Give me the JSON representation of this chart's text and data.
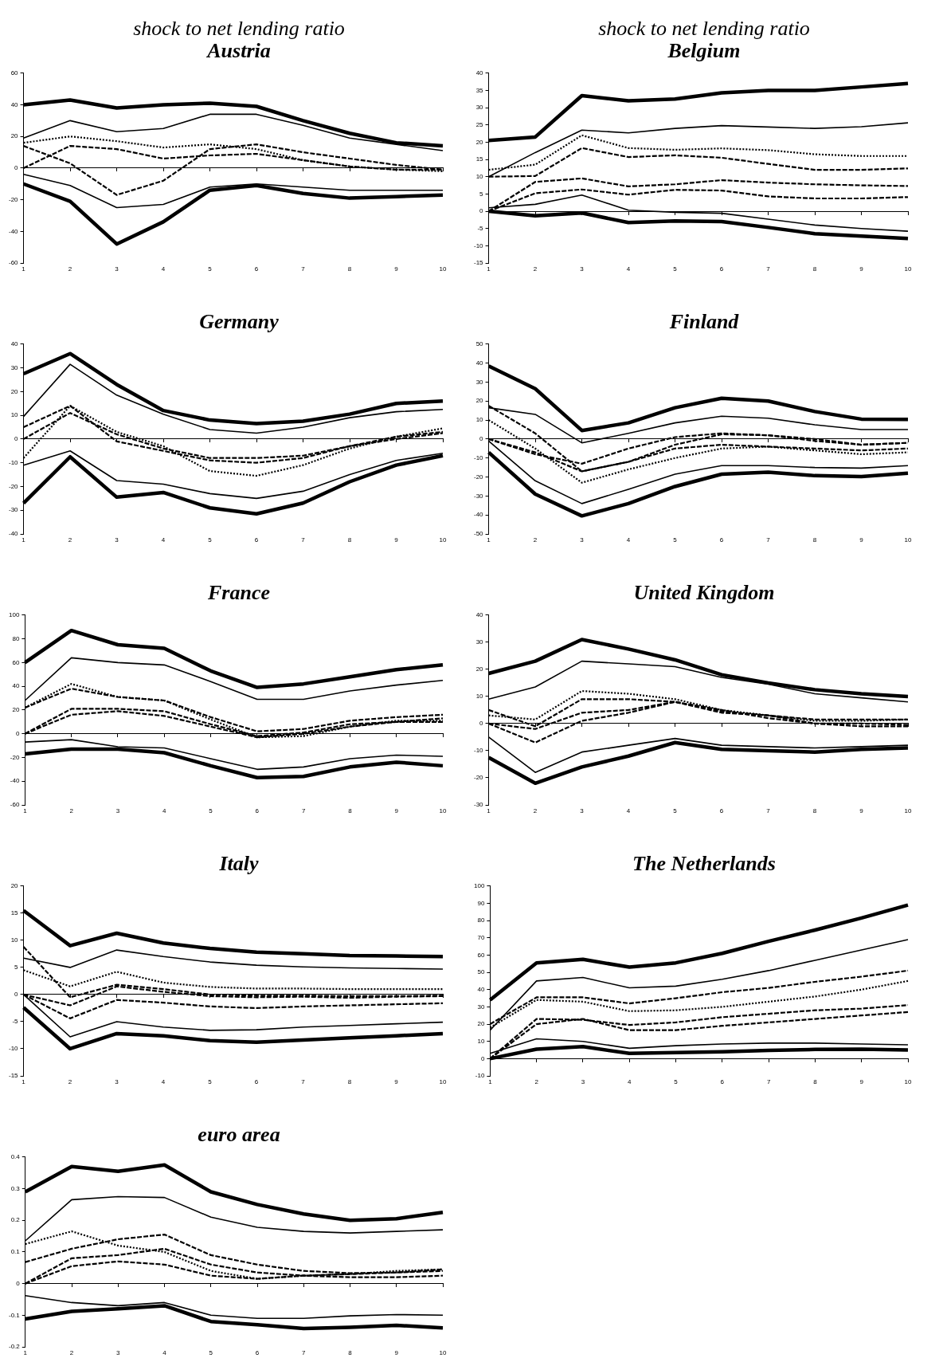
{
  "chart_data": [
    {
      "type": "line",
      "subtitle": "shock to net lending ratio",
      "title": "Austria",
      "categories": [
        "1",
        "2",
        "3",
        "4",
        "5",
        "6",
        "7",
        "8",
        "9",
        "10"
      ],
      "ylim": [
        -60,
        60
      ],
      "yticks": [
        -60,
        -40,
        -20,
        0,
        20,
        40,
        60
      ],
      "legend": false,
      "series": [
        {
          "color": "#000000",
          "line_style": "solid",
          "values": [
            40,
            43,
            38,
            40,
            41,
            39,
            30,
            22,
            16,
            14
          ]
        },
        {
          "color": "#000000",
          "line_style": "solid",
          "values": [
            -10,
            -21,
            -48,
            -34,
            -14,
            -11,
            -16,
            -19,
            -18,
            -17
          ]
        },
        {
          "color": "#000000",
          "line_style": "solid",
          "values": [
            19,
            30,
            23,
            25,
            34,
            34,
            27,
            19,
            15,
            11
          ]
        },
        {
          "color": "#000000",
          "line_style": "solid",
          "values": [
            -4,
            -11,
            -25,
            -23,
            -12,
            -10,
            -12,
            -14,
            -14,
            -14
          ]
        },
        {
          "color": "#000000",
          "line_style": "dotted",
          "values": [
            16,
            20,
            17,
            13,
            15,
            12,
            5,
            1,
            -1,
            -2
          ]
        },
        {
          "color": "#000000",
          "line_style": "dashed",
          "values": [
            14,
            3,
            -17,
            -8,
            12,
            15,
            10,
            6,
            2,
            -1
          ]
        },
        {
          "color": "#000000",
          "line_style": "dashed",
          "values": [
            0,
            14,
            12,
            6,
            8,
            9,
            5,
            1,
            -1,
            -1
          ]
        }
      ]
    },
    {
      "type": "line",
      "subtitle": "shock to net lending ratio",
      "title": "Belgium",
      "categories": [
        "1",
        "2",
        "3",
        "4",
        "5",
        "6",
        "7",
        "8",
        "9",
        "10"
      ],
      "ylim": [
        -15,
        40
      ],
      "yticks": [
        -15,
        -10,
        -5,
        0,
        5,
        10,
        15,
        20,
        25,
        30,
        35,
        40
      ],
      "legend": false,
      "series": [
        {
          "color": "#000000",
          "line_style": "solid",
          "values": [
            20.5,
            21.5,
            33.5,
            32,
            32.5,
            34.3,
            35,
            35,
            36,
            37
          ]
        },
        {
          "color": "#000000",
          "line_style": "solid",
          "values": [
            0,
            -1.3,
            -0.5,
            -3.3,
            -2.8,
            -3,
            -4.7,
            -6.5,
            -7.2,
            -7.9
          ]
        },
        {
          "color": "#000000",
          "line_style": "solid",
          "values": [
            10,
            17,
            23.5,
            22.7,
            24,
            24.8,
            24.4,
            24,
            24.5,
            25.6
          ]
        },
        {
          "color": "#000000",
          "line_style": "solid",
          "values": [
            1,
            2,
            4.7,
            0.3,
            -0.3,
            -0.6,
            -2.3,
            -4,
            -5,
            -5.8
          ]
        },
        {
          "color": "#000000",
          "line_style": "dotted",
          "values": [
            12,
            13.5,
            22,
            18.3,
            17.8,
            18.2,
            17.7,
            16.5,
            16,
            16
          ]
        },
        {
          "color": "#000000",
          "line_style": "dashed",
          "values": [
            10,
            10.2,
            18.3,
            15.7,
            16.2,
            15.5,
            13.7,
            12,
            12,
            12.4
          ]
        },
        {
          "color": "#000000",
          "line_style": "dashed",
          "values": [
            0,
            8.5,
            9.5,
            7.2,
            7.8,
            9,
            8.3,
            7.8,
            7.5,
            7.3
          ]
        },
        {
          "color": "#000000",
          "line_style": "dashed",
          "values": [
            0,
            5.2,
            6.3,
            4.8,
            6.2,
            6,
            4.3,
            3.7,
            3.7,
            4.1
          ]
        }
      ]
    },
    {
      "type": "line",
      "title": "Germany",
      "categories": [
        "1",
        "2",
        "3",
        "4",
        "5",
        "6",
        "7",
        "8",
        "9",
        "10"
      ],
      "ylim": [
        -40,
        40
      ],
      "yticks": [
        -40,
        -30,
        -20,
        -10,
        0,
        10,
        20,
        30,
        40
      ],
      "legend": false,
      "series": [
        {
          "color": "#000000",
          "line_style": "solid",
          "values": [
            27.5,
            36,
            23,
            12,
            8,
            6.5,
            7.5,
            10.5,
            15,
            16
          ]
        },
        {
          "color": "#000000",
          "line_style": "solid",
          "values": [
            -27,
            -7.5,
            -24.5,
            -22.5,
            -29,
            -31.5,
            -27,
            -18,
            -11,
            -7
          ]
        },
        {
          "color": "#000000",
          "line_style": "solid",
          "values": [
            9.5,
            31.5,
            18.5,
            10.5,
            4,
            2.5,
            5,
            9,
            11.5,
            12.5
          ]
        },
        {
          "color": "#000000",
          "line_style": "solid",
          "values": [
            -11,
            -5,
            -17.5,
            -19,
            -23,
            -25,
            -22,
            -15,
            -9,
            -6
          ]
        },
        {
          "color": "#000000",
          "line_style": "dotted",
          "values": [
            -8,
            14,
            3,
            -3,
            -13.5,
            -15.5,
            -11,
            -4,
            1,
            4.5
          ]
        },
        {
          "color": "#000000",
          "line_style": "dashed",
          "values": [
            5,
            14,
            -1,
            -5,
            -9,
            -10,
            -8,
            -3,
            1,
            3
          ]
        },
        {
          "color": "#000000",
          "line_style": "dashed",
          "values": [
            0,
            11,
            2,
            -4,
            -8,
            -8,
            -7,
            -3,
            0,
            2.5
          ]
        }
      ]
    },
    {
      "type": "line",
      "title": "Finland",
      "categories": [
        "1",
        "2",
        "3",
        "4",
        "5",
        "6",
        "7",
        "8",
        "9",
        "10"
      ],
      "ylim": [
        -50,
        50
      ],
      "yticks": [
        -50,
        -40,
        -30,
        -20,
        -10,
        0,
        10,
        20,
        30,
        40,
        50
      ],
      "legend": false,
      "series": [
        {
          "color": "#000000",
          "line_style": "solid",
          "values": [
            38.5,
            26.5,
            4.5,
            8.5,
            16.5,
            21.5,
            20,
            14.5,
            10.5,
            10.3
          ]
        },
        {
          "color": "#000000",
          "line_style": "solid",
          "values": [
            -7,
            -29,
            -40.5,
            -34,
            -25,
            -18.5,
            -17.5,
            -19.3,
            -19.8,
            -18
          ]
        },
        {
          "color": "#000000",
          "line_style": "solid",
          "values": [
            16.5,
            13,
            -2,
            3,
            8.5,
            12,
            11,
            7.5,
            5,
            5
          ]
        },
        {
          "color": "#000000",
          "line_style": "solid",
          "values": [
            -1,
            -22,
            -34,
            -26.5,
            -18.5,
            -14,
            -14,
            -15,
            -15.3,
            -14
          ]
        },
        {
          "color": "#000000",
          "line_style": "dotted",
          "values": [
            10,
            -5,
            -23,
            -16,
            -10,
            -5,
            -4,
            -6,
            -8,
            -7
          ]
        },
        {
          "color": "#000000",
          "line_style": "dashed",
          "values": [
            17.5,
            3,
            -17,
            -12,
            -3,
            2.5,
            2,
            -1,
            -3,
            -2
          ]
        },
        {
          "color": "#000000",
          "line_style": "dashed",
          "values": [
            0,
            -8,
            -13,
            -5,
            1,
            3,
            2,
            0,
            -3,
            -2
          ]
        },
        {
          "color": "#000000",
          "line_style": "dashed",
          "values": [
            0,
            -7,
            -17,
            -12,
            -5,
            -3,
            -4,
            -5,
            -6,
            -5
          ]
        }
      ]
    },
    {
      "type": "line",
      "title": "France",
      "categories": [
        "1",
        "2",
        "3",
        "4",
        "5",
        "6",
        "7",
        "8",
        "9",
        "10"
      ],
      "ylim": [
        -60,
        100
      ],
      "yticks": [
        -60,
        -40,
        -20,
        0,
        20,
        40,
        60,
        80,
        100
      ],
      "legend": false,
      "series": [
        {
          "color": "#000000",
          "line_style": "solid",
          "values": [
            60,
            87,
            75,
            72,
            53,
            39,
            42,
            48,
            54,
            58
          ]
        },
        {
          "color": "#000000",
          "line_style": "solid",
          "values": [
            -17,
            -13,
            -13,
            -16,
            -27,
            -37,
            -36,
            -28,
            -24,
            -27
          ]
        },
        {
          "color": "#000000",
          "line_style": "solid",
          "values": [
            28,
            64,
            60,
            58,
            44,
            29,
            29,
            36,
            41,
            45
          ]
        },
        {
          "color": "#000000",
          "line_style": "solid",
          "values": [
            -7,
            -5,
            -11,
            -12,
            -21,
            -30,
            -28,
            -21,
            -18,
            -19
          ]
        },
        {
          "color": "#000000",
          "line_style": "dotted",
          "values": [
            22,
            42,
            31,
            28,
            12,
            -3,
            -2,
            6,
            11,
            11
          ]
        },
        {
          "color": "#000000",
          "line_style": "dashed",
          "values": [
            22,
            38,
            31,
            28,
            14,
            2,
            4,
            11,
            14,
            16
          ]
        },
        {
          "color": "#000000",
          "line_style": "dashed",
          "values": [
            0,
            21,
            21,
            19,
            8,
            -2,
            1,
            8,
            10,
            13
          ]
        },
        {
          "color": "#000000",
          "line_style": "dashed",
          "values": [
            0,
            16,
            19,
            15,
            6,
            -3,
            0,
            6,
            10,
            10
          ]
        }
      ]
    },
    {
      "type": "line",
      "title": "United Kingdom",
      "categories": [
        "1",
        "2",
        "3",
        "4",
        "5",
        "6",
        "7",
        "8",
        "9",
        "10"
      ],
      "ylim": [
        -30,
        40
      ],
      "yticks": [
        -30,
        -20,
        -10,
        0,
        10,
        20,
        30,
        40
      ],
      "legend": false,
      "series": [
        {
          "color": "#000000",
          "line_style": "solid",
          "values": [
            18.5,
            23,
            31,
            27.5,
            23.5,
            18,
            15,
            12.5,
            11,
            10
          ]
        },
        {
          "color": "#000000",
          "line_style": "solid",
          "values": [
            -12.5,
            -22,
            -16,
            -12,
            -7,
            -9.5,
            -10,
            -10.5,
            -9.5,
            -9
          ]
        },
        {
          "color": "#000000",
          "line_style": "solid",
          "values": [
            9,
            13.5,
            23,
            22,
            21,
            17,
            14.5,
            11,
            9.5,
            8
          ]
        },
        {
          "color": "#000000",
          "line_style": "solid",
          "values": [
            -5,
            -18,
            -10.5,
            -8,
            -5.5,
            -8,
            -8.5,
            -9,
            -8.5,
            -8
          ]
        },
        {
          "color": "#000000",
          "line_style": "dotted",
          "values": [
            3,
            1.5,
            12,
            11,
            9,
            5,
            3,
            1,
            1,
            1.5
          ]
        },
        {
          "color": "#000000",
          "line_style": "dashed",
          "values": [
            5,
            -1,
            9,
            9,
            8,
            4.5,
            3,
            1.5,
            1.5,
            1.5
          ]
        },
        {
          "color": "#000000",
          "line_style": "dashed",
          "values": [
            0,
            -2,
            4,
            5,
            8,
            4,
            3,
            0,
            -1,
            -1
          ]
        },
        {
          "color": "#000000",
          "line_style": "dashed",
          "values": [
            0,
            -7,
            1,
            4,
            8,
            5,
            2,
            0,
            0,
            -0.5
          ]
        }
      ]
    },
    {
      "type": "line",
      "title": "Italy",
      "categories": [
        "1",
        "2",
        "3",
        "4",
        "5",
        "6",
        "7",
        "8",
        "9",
        "10"
      ],
      "ylim": [
        -15,
        20
      ],
      "yticks": [
        -15,
        -10,
        -5,
        0,
        5,
        10,
        15,
        20
      ],
      "legend": false,
      "series": [
        {
          "color": "#000000",
          "line_style": "solid",
          "values": [
            15.5,
            9,
            11.3,
            9.5,
            8.5,
            7.8,
            7.5,
            7.2,
            7.1,
            7
          ]
        },
        {
          "color": "#000000",
          "line_style": "solid",
          "values": [
            -2.4,
            -10,
            -7.2,
            -7.6,
            -8.5,
            -8.8,
            -8.4,
            -8,
            -7.6,
            -7.2
          ]
        },
        {
          "color": "#000000",
          "line_style": "solid",
          "values": [
            6.7,
            5,
            8.2,
            7,
            6,
            5.4,
            5.1,
            4.9,
            4.8,
            4.7
          ]
        },
        {
          "color": "#000000",
          "line_style": "solid",
          "values": [
            0,
            -7.8,
            -5,
            -6,
            -6.6,
            -6.5,
            -6,
            -5.7,
            -5.4,
            -5.1
          ]
        },
        {
          "color": "#000000",
          "line_style": "dotted",
          "values": [
            4.5,
            1.5,
            4.2,
            2.2,
            1.4,
            1.1,
            1.1,
            1,
            1,
            1
          ]
        },
        {
          "color": "#000000",
          "line_style": "dashed",
          "values": [
            8.8,
            -0.5,
            1.8,
            1,
            0,
            -0.2,
            -0.2,
            -0.3,
            -0.3,
            -0.2
          ]
        },
        {
          "color": "#000000",
          "line_style": "dashed",
          "values": [
            0,
            -4.4,
            -1,
            -1.5,
            -2.2,
            -2.5,
            -2.2,
            -2,
            -1.8,
            -1.6
          ]
        },
        {
          "color": "#000000",
          "line_style": "dashed",
          "values": [
            0,
            -2,
            1.5,
            0.5,
            -0.3,
            -0.5,
            -0.4,
            -0.6,
            -0.4,
            -0.3
          ]
        }
      ]
    },
    {
      "type": "line",
      "title": "The Netherlands",
      "categories": [
        "1",
        "2",
        "3",
        "4",
        "5",
        "6",
        "7",
        "8",
        "9",
        "10"
      ],
      "ylim": [
        -10,
        100
      ],
      "yticks": [
        -10,
        0,
        10,
        20,
        30,
        40,
        50,
        60,
        70,
        80,
        90,
        100
      ],
      "legend": false,
      "series": [
        {
          "color": "#000000",
          "line_style": "solid",
          "values": [
            34,
            55.5,
            57.5,
            53,
            55.5,
            61,
            68,
            74.5,
            81.5,
            89
          ]
        },
        {
          "color": "#000000",
          "line_style": "solid",
          "values": [
            0,
            5.5,
            7,
            3,
            3.5,
            4,
            4.8,
            5.3,
            5.5,
            5
          ]
        },
        {
          "color": "#000000",
          "line_style": "solid",
          "values": [
            16.5,
            45,
            47,
            41,
            42,
            46,
            51,
            57,
            63,
            69
          ]
        },
        {
          "color": "#000000",
          "line_style": "solid",
          "values": [
            3,
            11.5,
            10,
            6,
            7.5,
            8.5,
            9,
            9,
            8.5,
            8
          ]
        },
        {
          "color": "#000000",
          "line_style": "dotted",
          "values": [
            18,
            34,
            33,
            27.5,
            28,
            30,
            33,
            36,
            40,
            45
          ]
        },
        {
          "color": "#000000",
          "line_style": "dashed",
          "values": [
            20,
            35.5,
            35.5,
            32,
            35,
            38.5,
            41,
            44.5,
            47.5,
            51
          ]
        },
        {
          "color": "#000000",
          "line_style": "dashed",
          "values": [
            0,
            23,
            22.5,
            19.5,
            21,
            24,
            26,
            28,
            29,
            31
          ]
        },
        {
          "color": "#000000",
          "line_style": "dashed",
          "values": [
            0,
            20,
            23,
            16.5,
            16.5,
            19,
            21,
            23,
            25,
            27
          ]
        }
      ]
    },
    {
      "type": "line",
      "title": "euro area",
      "categories": [
        "1",
        "2",
        "3",
        "4",
        "5",
        "6",
        "7",
        "8",
        "9",
        "10"
      ],
      "ylim": [
        -0.2,
        0.4
      ],
      "yticks": [
        -0.2,
        -0.1,
        0,
        0.1,
        0.2,
        0.3,
        0.4
      ],
      "legend": false,
      "series": [
        {
          "color": "#000000",
          "line_style": "solid",
          "values": [
            0.29,
            0.37,
            0.355,
            0.375,
            0.29,
            0.25,
            0.22,
            0.2,
            0.205,
            0.225
          ]
        },
        {
          "color": "#000000",
          "line_style": "solid",
          "values": [
            -0.112,
            -0.088,
            -0.08,
            -0.07,
            -0.12,
            -0.13,
            -0.142,
            -0.138,
            -0.132,
            -0.14
          ]
        },
        {
          "color": "#000000",
          "line_style": "solid",
          "values": [
            0.135,
            0.265,
            0.275,
            0.272,
            0.21,
            0.178,
            0.165,
            0.16,
            0.165,
            0.17
          ]
        },
        {
          "color": "#000000",
          "line_style": "solid",
          "values": [
            -0.038,
            -0.06,
            -0.07,
            -0.06,
            -0.1,
            -0.11,
            -0.11,
            -0.102,
            -0.098,
            -0.1
          ]
        },
        {
          "color": "#000000",
          "line_style": "dotted",
          "values": [
            0.125,
            0.165,
            0.12,
            0.1,
            0.04,
            0.015,
            0.025,
            0.03,
            0.04,
            0.045
          ]
        },
        {
          "color": "#000000",
          "line_style": "dashed",
          "values": [
            0.068,
            0.11,
            0.14,
            0.155,
            0.09,
            0.06,
            0.04,
            0.033,
            0.035,
            0.045
          ]
        },
        {
          "color": "#000000",
          "line_style": "dashed",
          "values": [
            0,
            0.08,
            0.09,
            0.11,
            0.06,
            0.035,
            0.025,
            0.03,
            0.035,
            0.04
          ]
        },
        {
          "color": "#000000",
          "line_style": "dashed",
          "values": [
            0,
            0.055,
            0.07,
            0.06,
            0.025,
            0.015,
            0.025,
            0.02,
            0.02,
            0.025
          ]
        }
      ]
    }
  ]
}
